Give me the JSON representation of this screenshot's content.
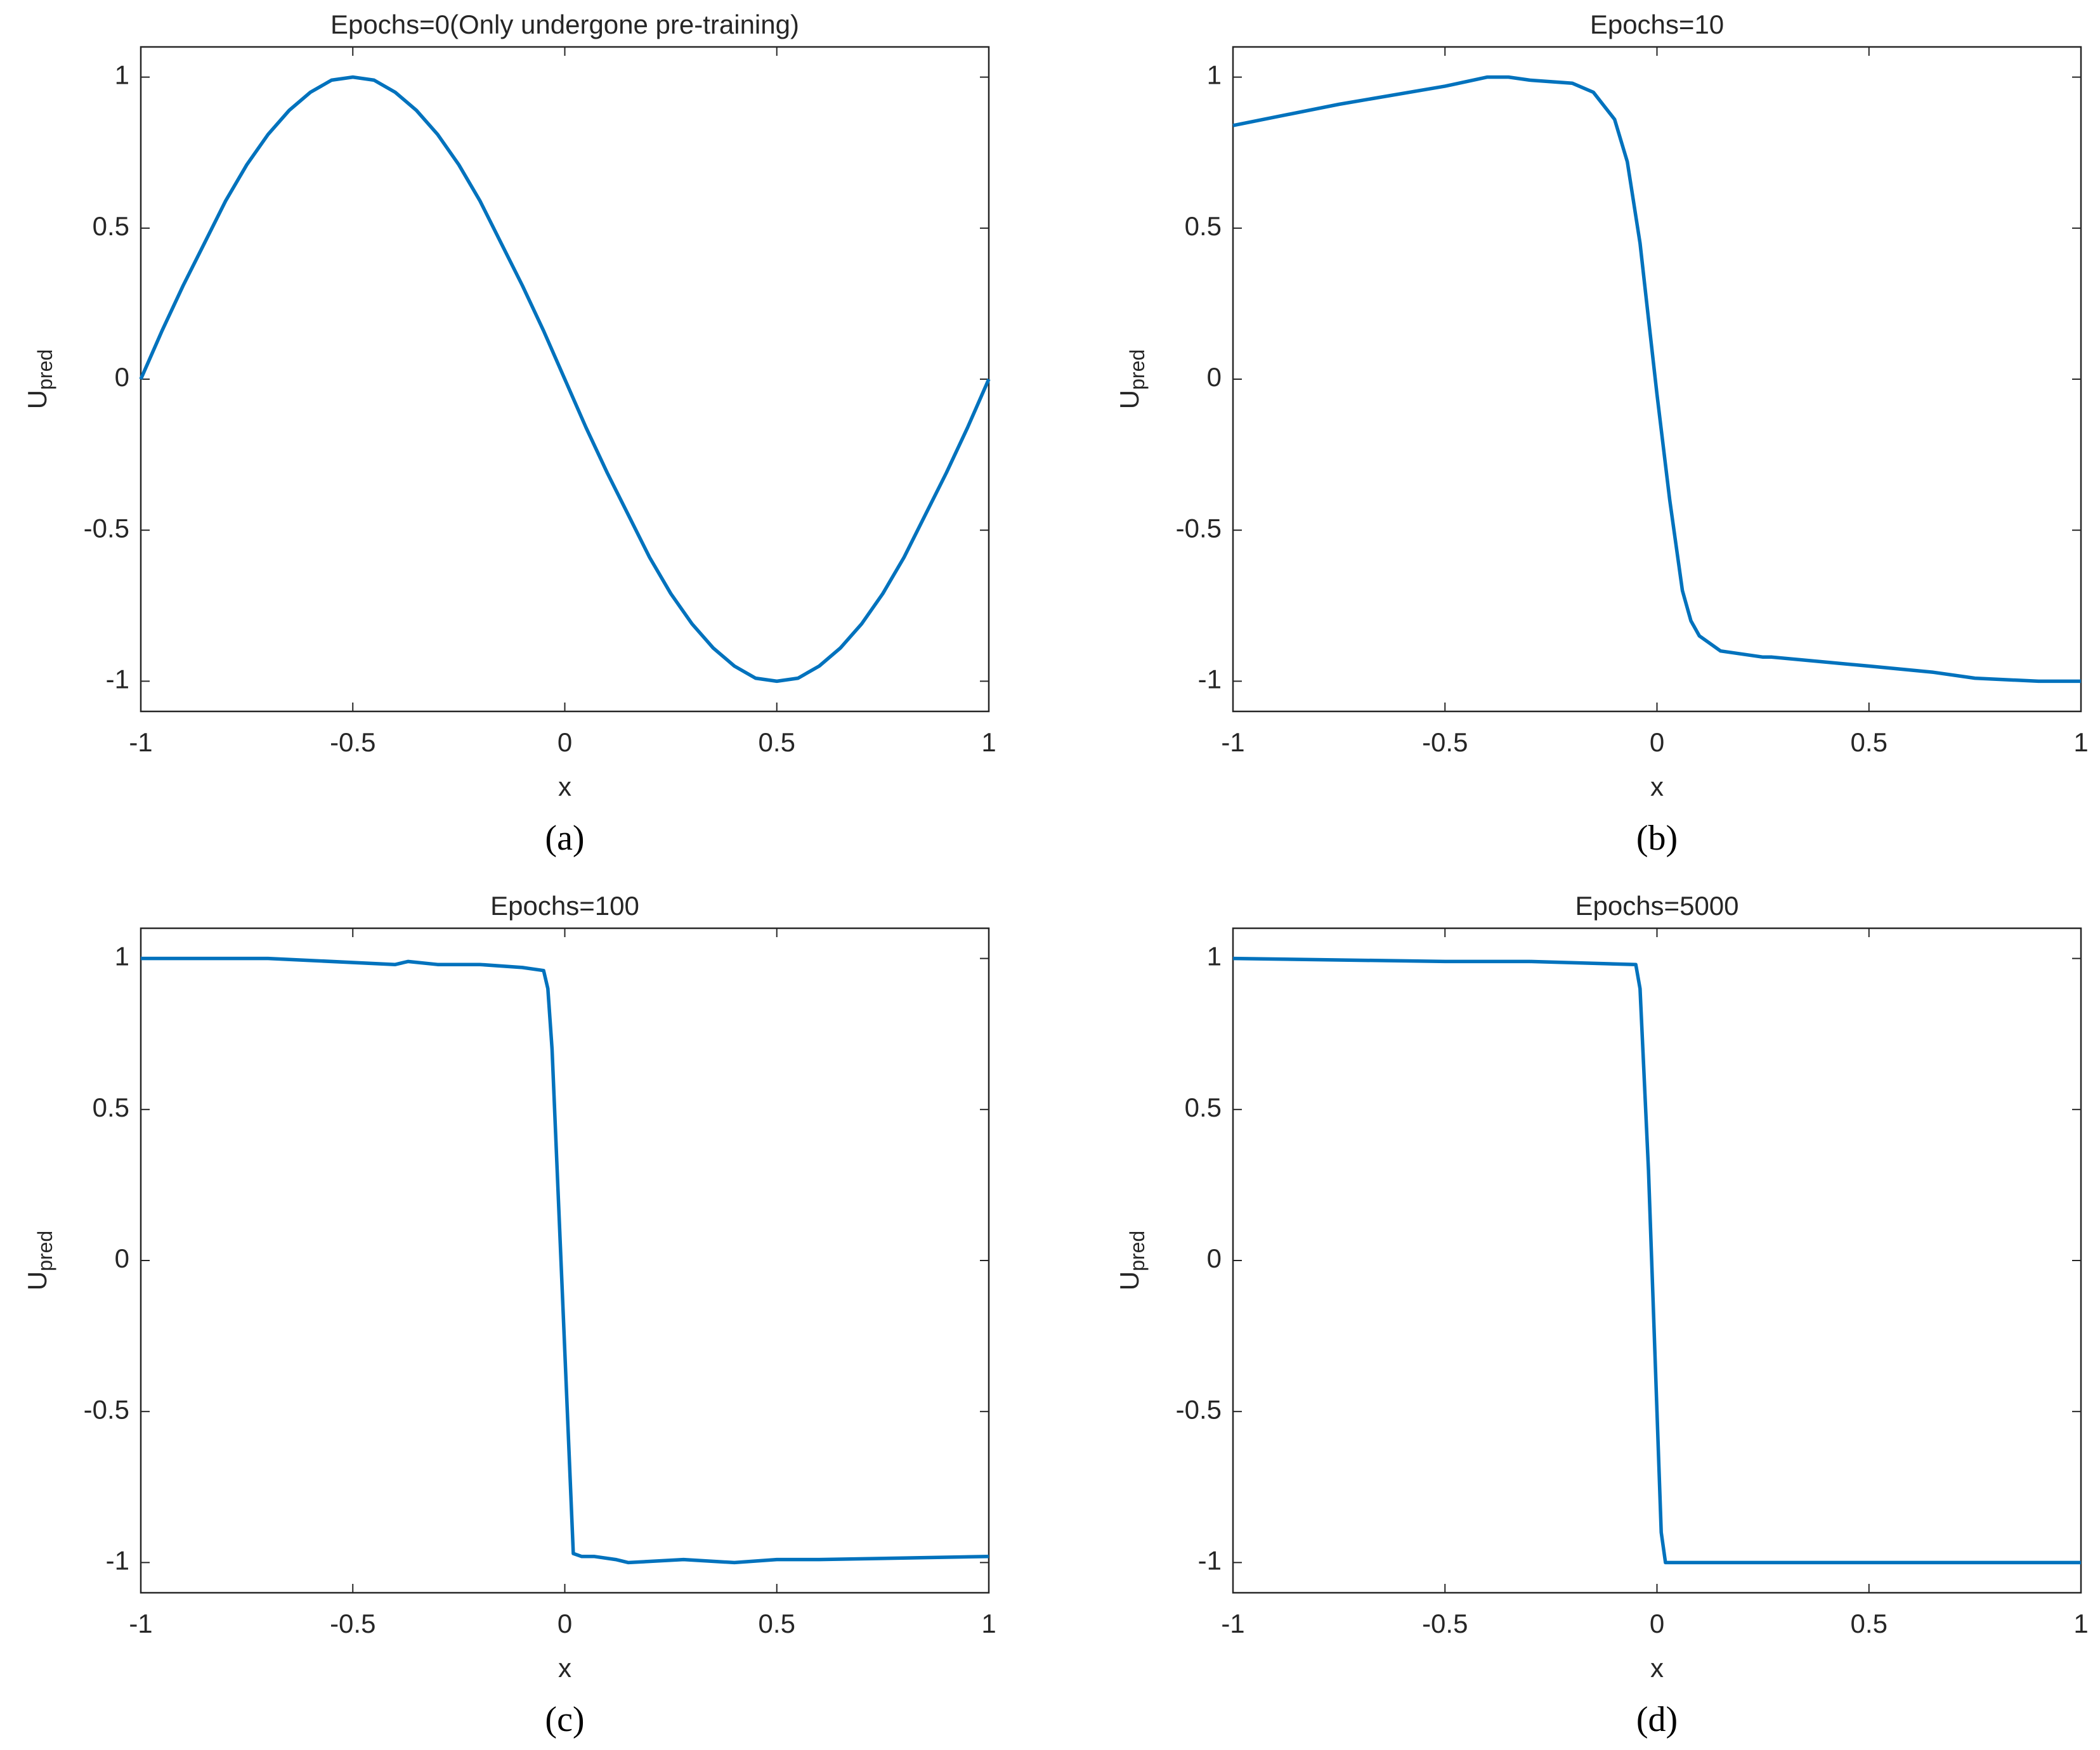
{
  "chart_data": [
    {
      "type": "line",
      "title": "Epochs=0(Only undergone pre-training)",
      "caption": "(a)",
      "xlabel": "x",
      "ylabel": "U",
      "ylabel_subscript": "pred",
      "xlim": [
        -1,
        1
      ],
      "ylim": [
        -1.1,
        1.1
      ],
      "xticks": [
        -1,
        -0.5,
        0,
        0.5,
        1
      ],
      "yticks": [
        -1,
        -0.5,
        0,
        0.5,
        1
      ],
      "series": [
        {
          "color": "#0072bd",
          "x": [
            -1,
            -0.95,
            -0.9,
            -0.85,
            -0.8,
            -0.75,
            -0.7,
            -0.65,
            -0.6,
            -0.55,
            -0.5,
            -0.45,
            -0.4,
            -0.35,
            -0.3,
            -0.25,
            -0.2,
            -0.15,
            -0.1,
            -0.05,
            0,
            0.05,
            0.1,
            0.15,
            0.2,
            0.25,
            0.3,
            0.35,
            0.4,
            0.45,
            0.5,
            0.55,
            0.6,
            0.65,
            0.7,
            0.75,
            0.8,
            0.85,
            0.9,
            0.95,
            1
          ],
          "values": [
            0,
            0.16,
            0.31,
            0.45,
            0.59,
            0.71,
            0.81,
            0.89,
            0.95,
            0.99,
            1,
            0.99,
            0.95,
            0.89,
            0.81,
            0.71,
            0.59,
            0.45,
            0.31,
            0.16,
            0,
            -0.16,
            -0.31,
            -0.45,
            -0.59,
            -0.71,
            -0.81,
            -0.89,
            -0.95,
            -0.99,
            -1,
            -0.99,
            -0.95,
            -0.89,
            -0.81,
            -0.71,
            -0.59,
            -0.45,
            -0.31,
            -0.16,
            0
          ]
        }
      ]
    },
    {
      "type": "line",
      "title": "Epochs=10",
      "caption": "(b)",
      "xlabel": "x",
      "ylabel": "U",
      "ylabel_subscript": "pred",
      "xlim": [
        -1,
        1
      ],
      "ylim": [
        -1.1,
        1.1
      ],
      "xticks": [
        -1,
        -0.5,
        0,
        0.5,
        1
      ],
      "yticks": [
        -1,
        -0.5,
        0,
        0.5,
        1
      ],
      "series": [
        {
          "color": "#0072bd",
          "x": [
            -1,
            -0.75,
            -0.5,
            -0.4,
            -0.35,
            -0.3,
            -0.2,
            -0.15,
            -0.1,
            -0.07,
            -0.04,
            -0.02,
            0,
            0.03,
            0.06,
            0.08,
            0.1,
            0.15,
            0.25,
            0.27,
            0.5,
            0.65,
            0.75,
            0.9,
            1
          ],
          "values": [
            0.84,
            0.91,
            0.97,
            1.0,
            1.0,
            0.99,
            0.98,
            0.95,
            0.86,
            0.72,
            0.45,
            0.2,
            -0.05,
            -0.4,
            -0.7,
            -0.8,
            -0.85,
            -0.9,
            -0.92,
            -0.92,
            -0.95,
            -0.97,
            -0.99,
            -1.0,
            -1.0
          ]
        }
      ]
    },
    {
      "type": "line",
      "title": "Epochs=100",
      "caption": "(c)",
      "xlabel": "x",
      "ylabel": "U",
      "ylabel_subscript": "pred",
      "xlim": [
        -1,
        1
      ],
      "ylim": [
        -1.1,
        1.1
      ],
      "xticks": [
        -1,
        -0.5,
        0,
        0.5,
        1
      ],
      "yticks": [
        -1,
        -0.5,
        0,
        0.5,
        1
      ],
      "series": [
        {
          "color": "#0072bd",
          "x": [
            -1,
            -0.7,
            -0.4,
            -0.37,
            -0.3,
            -0.2,
            -0.1,
            -0.05,
            -0.04,
            -0.03,
            0,
            0.02,
            0.04,
            0.07,
            0.12,
            0.15,
            0.28,
            0.4,
            0.5,
            0.6,
            1
          ],
          "values": [
            1,
            1,
            0.98,
            0.99,
            0.98,
            0.98,
            0.97,
            0.96,
            0.9,
            0.7,
            -0.3,
            -0.97,
            -0.98,
            -0.98,
            -0.99,
            -1.0,
            -0.99,
            -1.0,
            -0.99,
            -0.99,
            -0.98
          ]
        }
      ]
    },
    {
      "type": "line",
      "title": "Epochs=5000",
      "caption": "(d)",
      "xlabel": "x",
      "ylabel": "U",
      "ylabel_subscript": "pred",
      "xlim": [
        -1,
        1
      ],
      "ylim": [
        -1.1,
        1.1
      ],
      "xticks": [
        -1,
        -0.5,
        0,
        0.5,
        1
      ],
      "yticks": [
        -1,
        -0.5,
        0,
        0.5,
        1
      ],
      "series": [
        {
          "color": "#0072bd",
          "x": [
            -1,
            -0.5,
            -0.3,
            -0.05,
            -0.04,
            -0.02,
            0,
            0.01,
            0.02,
            0.3,
            1
          ],
          "values": [
            1,
            0.99,
            0.99,
            0.98,
            0.9,
            0.3,
            -0.5,
            -0.9,
            -1.0,
            -1,
            -1
          ]
        }
      ]
    }
  ]
}
